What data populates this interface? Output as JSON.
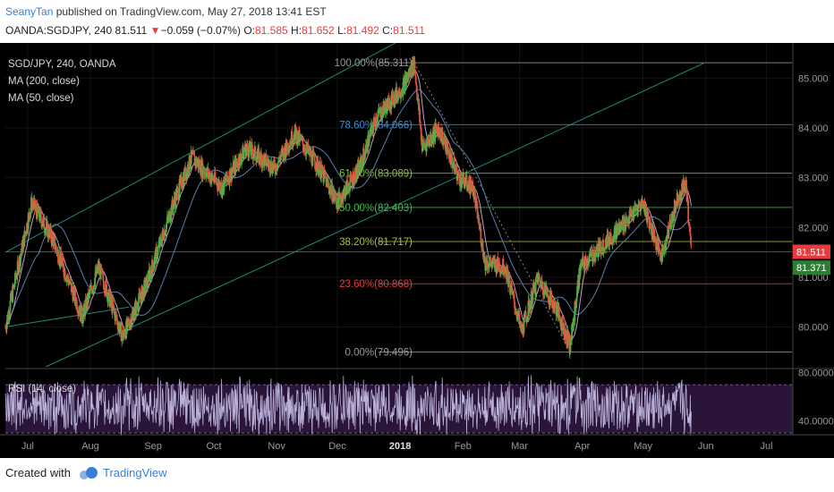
{
  "header": {
    "user": "SeanyTan",
    "published_text": " published on TradingView.com, May 27, 2018 13:41 EST",
    "symbol": "OANDA:SGDJPY, 240",
    "last": "81.511",
    "change_arrow": "▼",
    "change": "−0.059 (−0.07%)",
    "o_label": "O:",
    "o_value": "81.585",
    "h_label": "H:",
    "h_value": "81.652",
    "l_label": "L:",
    "l_value": "81.492",
    "c_label": "C:",
    "c_value": "81.511"
  },
  "legend": {
    "series": "SGD/JPY, 240, OANDA",
    "ma200": "MA (200, close)",
    "ma50": "MA (50, close)"
  },
  "rsi_label": "RSI (14, close)",
  "price_badges": {
    "last": "81.511",
    "ma": "81.371"
  },
  "footer": {
    "created_with": "Created with",
    "brand": "TradingView"
  },
  "colors": {
    "background": "#000000",
    "up_candle": "#52b34a",
    "down_candle": "#e0533d",
    "ma200": "#5b7fa8",
    "ma50": "#c0a0c8",
    "channel": "#1d8a7a",
    "rsi_line": "#b9b1d9",
    "rsi_band": "#2a1438",
    "fib_100": "#9a9a9a",
    "fib_786": "#3b8fd6",
    "fib_618": "#86c53e",
    "fib_500": "#3dbf4b",
    "fib_382": "#a9c03a",
    "fib_236": "#e03c3c",
    "fib_0": "#9a9a9a",
    "last_badge": "#e83c3c",
    "ma_badge": "#2f7d32"
  },
  "chart_data": {
    "type": "candlestick",
    "title": "SGD/JPY, 240, OANDA",
    "x_ticks": [
      "Jul",
      "Aug",
      "Sep",
      "Oct",
      "Nov",
      "Dec",
      "2018",
      "Feb",
      "Mar",
      "Apr",
      "May",
      "Jun",
      "Jul"
    ],
    "y_ticks": [
      "85.000",
      "84.000",
      "83.000",
      "82.000",
      "81.000",
      "80.000"
    ],
    "ylim": [
      79.2,
      85.6
    ],
    "price_path": [
      {
        "date": "2017-06-20",
        "price": 80.0
      },
      {
        "date": "2017-07-03",
        "price": 82.5
      },
      {
        "date": "2017-07-13",
        "price": 81.8
      },
      {
        "date": "2017-07-28",
        "price": 80.2
      },
      {
        "date": "2017-08-05",
        "price": 81.2
      },
      {
        "date": "2017-08-17",
        "price": 79.8
      },
      {
        "date": "2017-08-29",
        "price": 80.9
      },
      {
        "date": "2017-09-12",
        "price": 82.6
      },
      {
        "date": "2017-09-20",
        "price": 83.4
      },
      {
        "date": "2017-10-05",
        "price": 82.8
      },
      {
        "date": "2017-10-17",
        "price": 83.6
      },
      {
        "date": "2017-10-31",
        "price": 83.2
      },
      {
        "date": "2017-11-10",
        "price": 83.9
      },
      {
        "date": "2017-11-22",
        "price": 83.2
      },
      {
        "date": "2017-12-01",
        "price": 82.5
      },
      {
        "date": "2017-12-12",
        "price": 83.2
      },
      {
        "date": "2017-12-20",
        "price": 84.2
      },
      {
        "date": "2018-01-02",
        "price": 84.8
      },
      {
        "date": "2018-01-08",
        "price": 85.3
      },
      {
        "date": "2018-01-12",
        "price": 83.6
      },
      {
        "date": "2018-01-20",
        "price": 84.0
      },
      {
        "date": "2018-01-30",
        "price": 83.0
      },
      {
        "date": "2018-02-06",
        "price": 82.8
      },
      {
        "date": "2018-02-12",
        "price": 81.3
      },
      {
        "date": "2018-02-22",
        "price": 81.2
      },
      {
        "date": "2018-03-02",
        "price": 79.9
      },
      {
        "date": "2018-03-10",
        "price": 81.0
      },
      {
        "date": "2018-03-20",
        "price": 80.3
      },
      {
        "date": "2018-03-26",
        "price": 79.6
      },
      {
        "date": "2018-03-31",
        "price": 81.2
      },
      {
        "date": "2018-04-10",
        "price": 81.6
      },
      {
        "date": "2018-04-22",
        "price": 82.1
      },
      {
        "date": "2018-05-01",
        "price": 82.5
      },
      {
        "date": "2018-05-10",
        "price": 81.4
      },
      {
        "date": "2018-05-18",
        "price": 82.6
      },
      {
        "date": "2018-05-22",
        "price": 82.9
      },
      {
        "date": "2018-05-25",
        "price": 81.5
      }
    ],
    "fibonacci": [
      {
        "label": "100.00%(85.311)",
        "level": 85.311
      },
      {
        "label": "78.60%(84.066)",
        "level": 84.066
      },
      {
        "label": "61.80%(83.089)",
        "level": 83.089
      },
      {
        "label": "50.00%(82.403)",
        "level": 82.403
      },
      {
        "label": "38.20%(81.717)",
        "level": 81.717
      },
      {
        "label": "23.60%(80.868)",
        "level": 80.868
      },
      {
        "label": "0.00%(79.496)",
        "level": 79.496
      }
    ],
    "rsi": {
      "label": "RSI (14, close)",
      "y_ticks": [
        "80.0000",
        "40.0000"
      ],
      "ylim": [
        30,
        82
      ],
      "band": [
        30,
        70
      ]
    }
  }
}
